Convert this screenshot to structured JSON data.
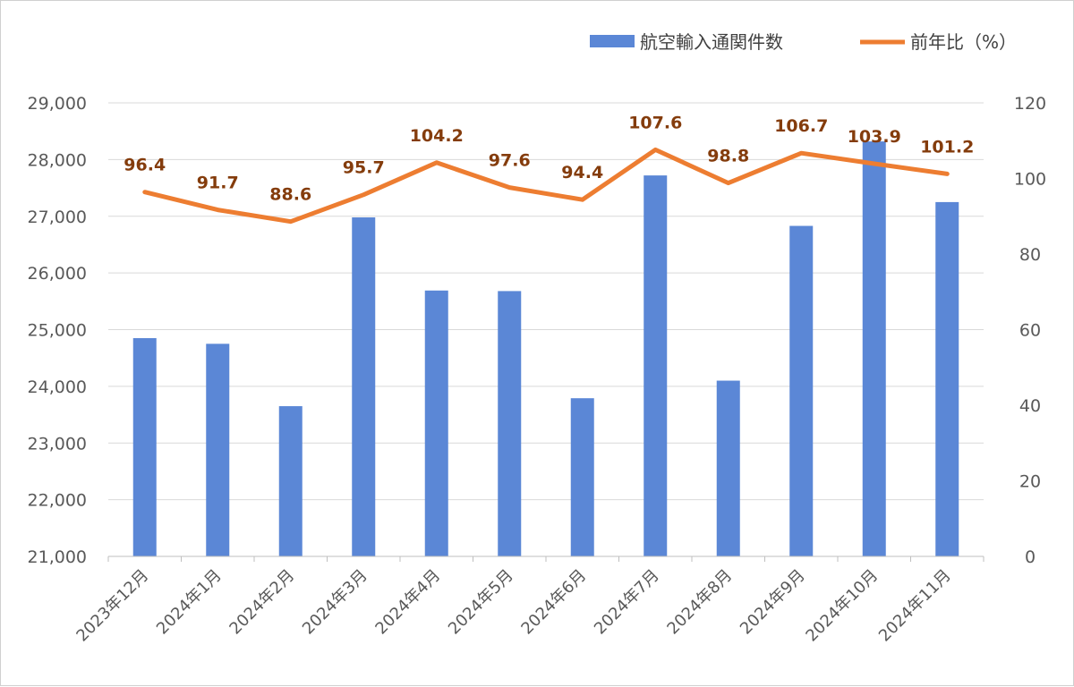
{
  "chart_data": {
    "type": "bar+line",
    "categories": [
      "2023年12月",
      "2024年1月",
      "2024年2月",
      "2024年3月",
      "2024年4月",
      "2024年5月",
      "2024年6月",
      "2024年7月",
      "2024年8月",
      "2024年9月",
      "2024年10月",
      "2024年11月"
    ],
    "series": [
      {
        "name": "航空輸入通関件数",
        "type": "bar",
        "axis": "left",
        "color": "#5b87d6",
        "values": [
          24850,
          24750,
          23650,
          26980,
          25690,
          25680,
          23790,
          27720,
          24100,
          26830,
          28320,
          27250
        ]
      },
      {
        "name": "前年比（%）",
        "type": "line",
        "axis": "right",
        "color": "#ed7d31",
        "values": [
          96.4,
          91.7,
          88.6,
          95.7,
          104.2,
          97.6,
          94.4,
          107.6,
          98.8,
          106.7,
          103.9,
          101.2
        ],
        "labels": [
          "96.4",
          "91.7",
          "88.6",
          "95.7",
          "104.2",
          "97.6",
          "94.4",
          "107.6",
          "98.8",
          "106.7",
          "103.9",
          "101.2"
        ]
      }
    ],
    "left_axis": {
      "ylim": [
        21000,
        29000
      ],
      "ticks": [
        21000,
        22000,
        23000,
        24000,
        25000,
        26000,
        27000,
        28000,
        29000
      ],
      "tick_labels": [
        "21,000",
        "22,000",
        "23,000",
        "24,000",
        "25,000",
        "26,000",
        "27,000",
        "28,000",
        "29,000"
      ]
    },
    "right_axis": {
      "ylim": [
        0,
        120
      ],
      "ticks": [
        0,
        20,
        40,
        60,
        80,
        100,
        120
      ],
      "tick_labels": [
        "0",
        "20",
        "40",
        "60",
        "80",
        "100",
        "120"
      ]
    },
    "grid": true,
    "legend_position": "top-right",
    "label_color": "#843c0c"
  }
}
